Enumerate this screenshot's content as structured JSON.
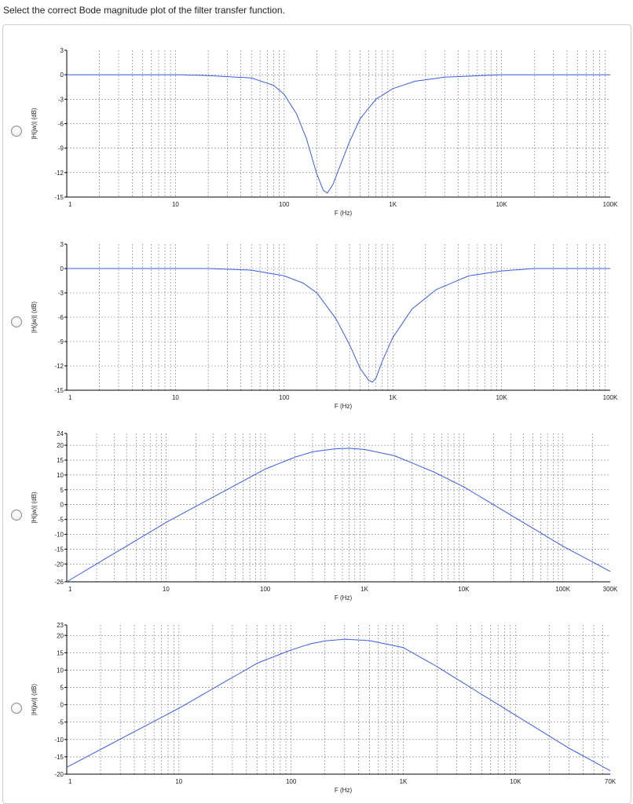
{
  "question": "Select the correct Bode magnitude plot of the filter transfer function.",
  "colors": {
    "curve": "#3a5cdc",
    "grid": "#7a7a7a",
    "axis": "#000000",
    "panel_border": "#cfcfcf"
  },
  "options": [
    {
      "label": "option-1"
    },
    {
      "label": "option-2"
    },
    {
      "label": "option-3"
    },
    {
      "label": "option-4"
    }
  ],
  "chart_data": [
    {
      "type": "line",
      "xscale": "log",
      "xlabel": "F (Hz)",
      "ylabel": "|H(jw)| (dB)",
      "xlim": [
        1,
        100000
      ],
      "ylim": [
        -15,
        3
      ],
      "xticks": [
        1,
        10,
        100,
        1000,
        10000,
        100000
      ],
      "xtick_labels": [
        "1",
        "10",
        "100",
        "1K",
        "10K",
        "100K"
      ],
      "yticks": [
        3,
        0,
        -3,
        -6,
        -9,
        -12,
        -15
      ],
      "ytick_labels": [
        "3",
        "0",
        "-3",
        "-6",
        "-9",
        "-12",
        "-15"
      ],
      "grid": true,
      "series": [
        {
          "x": [
            1,
            10,
            20,
            50,
            80,
            100,
            130,
            160,
            200,
            230,
            250,
            280,
            320,
            400,
            500,
            700,
            1000,
            1600,
            3000,
            10000,
            100000
          ],
          "y": [
            0,
            0,
            -0.1,
            -0.4,
            -1.3,
            -2.4,
            -4.8,
            -7.8,
            -12.2,
            -14.2,
            -14.5,
            -13.5,
            -11.5,
            -8.2,
            -5.4,
            -3.0,
            -1.7,
            -0.8,
            -0.3,
            0,
            0
          ]
        }
      ]
    },
    {
      "type": "line",
      "xscale": "log",
      "xlabel": "F (Hz)",
      "ylabel": "|H(jw)| (dB)",
      "xlim": [
        1,
        100000
      ],
      "ylim": [
        -15,
        3
      ],
      "xticks": [
        1,
        10,
        100,
        1000,
        10000,
        100000
      ],
      "xtick_labels": [
        "1",
        "10",
        "100",
        "1K",
        "10K",
        "100K"
      ],
      "yticks": [
        3,
        0,
        -3,
        -6,
        -9,
        -12,
        -15
      ],
      "ytick_labels": [
        "3",
        "0",
        "-3",
        "-6",
        "-9",
        "-12",
        "-15"
      ],
      "grid": true,
      "series": [
        {
          "x": [
            1,
            20,
            50,
            100,
            150,
            200,
            300,
            400,
            500,
            600,
            650,
            700,
            800,
            1000,
            1500,
            2500,
            5000,
            10000,
            20000,
            100000
          ],
          "y": [
            0,
            0,
            -0.2,
            -0.9,
            -1.8,
            -3.0,
            -6.2,
            -9.4,
            -12.3,
            -13.8,
            -14.0,
            -13.5,
            -11.4,
            -8.5,
            -5.0,
            -2.6,
            -0.9,
            -0.3,
            0,
            0
          ]
        }
      ]
    },
    {
      "type": "line",
      "xscale": "log",
      "xlabel": "F (Hz)",
      "ylabel": "|H(jw)| (dB)",
      "xlim": [
        1,
        300000
      ],
      "ylim": [
        -26,
        24
      ],
      "xticks": [
        1,
        10,
        100,
        1000,
        10000,
        100000,
        300000
      ],
      "xtick_labels": [
        "1",
        "10",
        "100",
        "1K",
        "10K",
        "100K",
        "300K"
      ],
      "yticks": [
        24,
        20,
        15,
        10,
        5,
        0,
        -5,
        -10,
        -15,
        -20,
        -26
      ],
      "ytick_labels": [
        "24",
        "20",
        "15",
        "10",
        "5",
        "0",
        "-5",
        "-10",
        "-15",
        "-20",
        "-26"
      ],
      "grid": true,
      "series": [
        {
          "x": [
            1,
            10,
            100,
            200,
            300,
            500,
            700,
            1000,
            2000,
            5000,
            10000,
            100000,
            300000
          ],
          "y": [
            -26,
            -6,
            12,
            16,
            17.8,
            18.8,
            19.0,
            18.6,
            16.5,
            11,
            6,
            -14,
            -22.5
          ]
        }
      ]
    },
    {
      "type": "line",
      "xscale": "log",
      "xlabel": "F (Hz)",
      "ylabel": "|H(jw)| (dB)",
      "xlim": [
        1,
        70000
      ],
      "ylim": [
        -20,
        23
      ],
      "xticks": [
        1,
        10,
        100,
        1000,
        10000,
        70000
      ],
      "xtick_labels": [
        "1",
        "10",
        "100",
        "1K",
        "10K",
        "70K"
      ],
      "yticks": [
        23,
        20,
        15,
        10,
        5,
        0,
        -5,
        -10,
        -15,
        -20
      ],
      "ytick_labels": [
        "23",
        "20",
        "15",
        "10",
        "5",
        "0",
        "-5",
        "-10",
        "-15",
        "-20"
      ],
      "grid": true,
      "series": [
        {
          "x": [
            1,
            10,
            50,
            100,
            150,
            200,
            300,
            500,
            1000,
            2000,
            5000,
            10000,
            30000,
            70000
          ],
          "y": [
            -18,
            -1,
            12,
            15.8,
            17.6,
            18.4,
            18.9,
            18.5,
            16.5,
            11,
            3,
            -3,
            -12.5,
            -19
          ]
        }
      ]
    }
  ]
}
